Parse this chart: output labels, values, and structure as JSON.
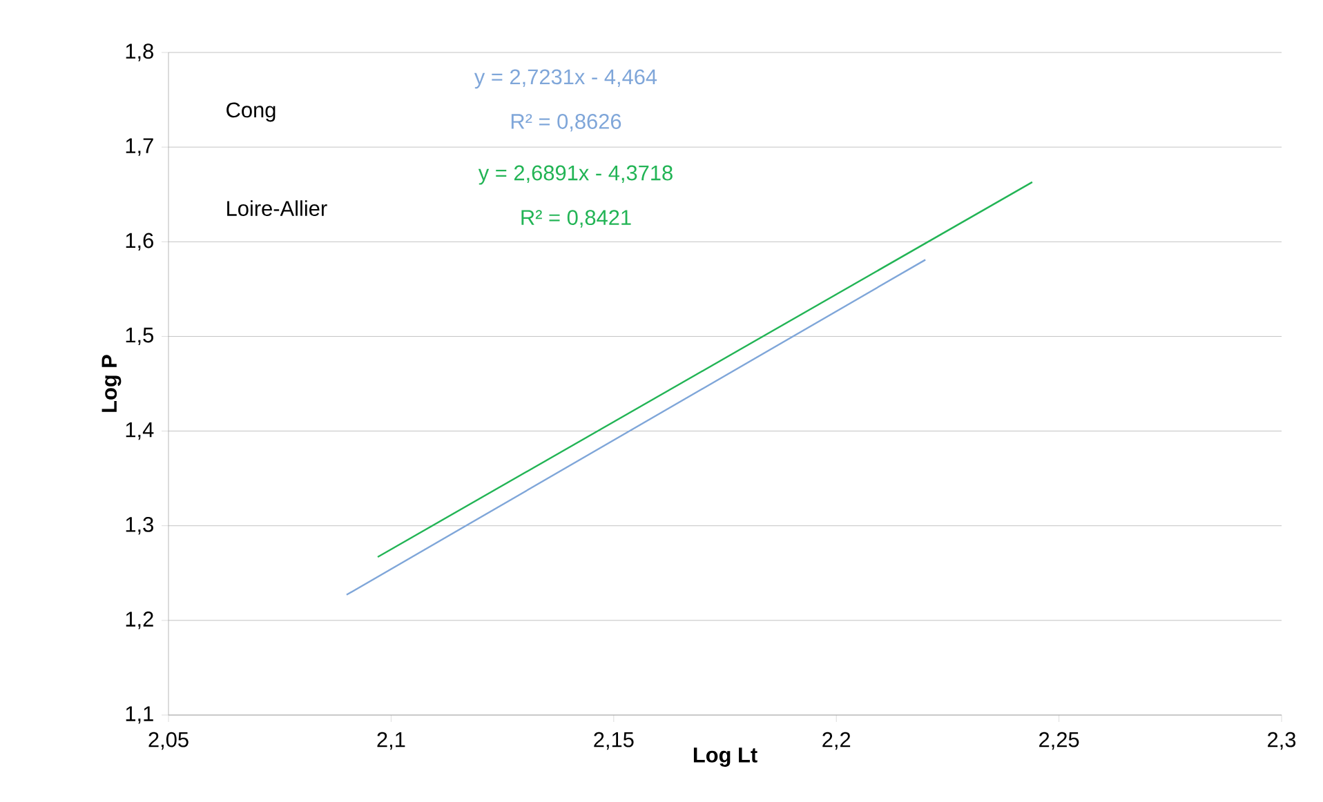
{
  "chart_data": {
    "type": "line",
    "xlabel": "Log Lt",
    "ylabel": "Log P",
    "series": [
      {
        "color": "#7fa6d9",
        "x": [
          2.09,
          2.22
        ],
        "values": [
          1.227,
          1.581
        ]
      },
      {
        "color": "#22b455",
        "x": [
          2.097,
          2.244
        ],
        "values": [
          1.267,
          1.663
        ]
      }
    ],
    "annotations": [
      "Cong",
      "y = 2,7231x - 4,464",
      "R² = 0,8626",
      "Loire-Allier",
      "y = 2,6891x - 4,3718",
      "R² = 0,8421"
    ],
    "xlim": [
      2.05,
      2.3
    ],
    "ylim": [
      1.1,
      1.8
    ],
    "xticks": [
      {
        "value": 2.05,
        "label": "2,05"
      },
      {
        "value": 2.1,
        "label": "2,1"
      },
      {
        "value": 2.15,
        "label": "2,15"
      },
      {
        "value": 2.2,
        "label": "2,2"
      },
      {
        "value": 2.25,
        "label": "2,25"
      },
      {
        "value": 2.3,
        "label": "2,3"
      }
    ],
    "yticks": [
      {
        "value": 1.1,
        "label": "1,1"
      },
      {
        "value": 1.2,
        "label": "1,2"
      },
      {
        "value": 1.3,
        "label": "1,3"
      },
      {
        "value": 1.4,
        "label": "1,4"
      },
      {
        "value": 1.5,
        "label": "1,5"
      },
      {
        "value": 1.6,
        "label": "1,6"
      },
      {
        "value": 1.7,
        "label": "1,7"
      },
      {
        "value": 1.8,
        "label": "1,8"
      }
    ],
    "grid": "y",
    "marker": "none",
    "line_style": "solid"
  }
}
